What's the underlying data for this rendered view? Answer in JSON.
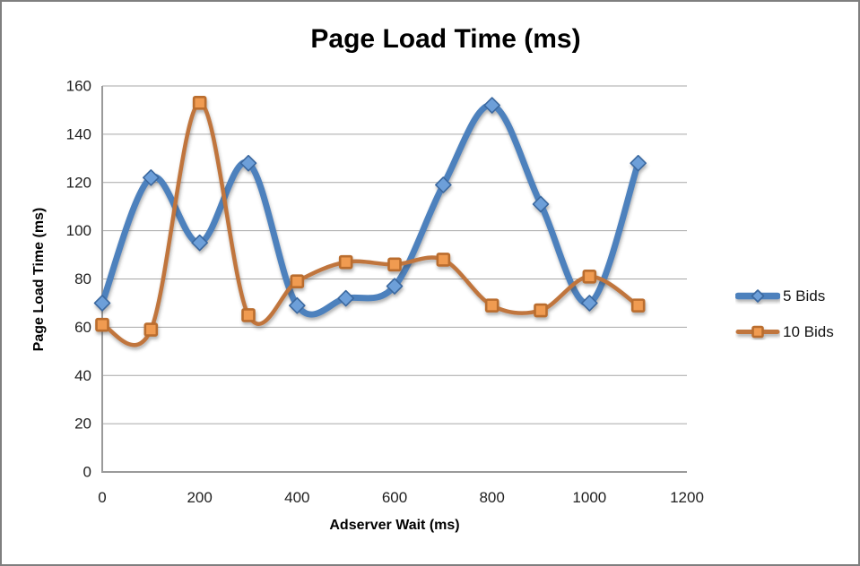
{
  "chart": {
    "title": "Page Load Time (ms)",
    "x_axis_title": "Adserver Wait (ms)",
    "y_axis_title": "Page Load Time (ms)",
    "legend_entries": [
      "5 Bids",
      "10 Bids"
    ]
  },
  "chart_data": {
    "type": "line",
    "smooth": true,
    "title": "Page Load Time (ms)",
    "xlabel": "Adserver Wait (ms)",
    "ylabel": "Page Load Time (ms)",
    "x": [
      0,
      100,
      200,
      300,
      400,
      500,
      600,
      700,
      800,
      900,
      1000,
      1100
    ],
    "series": [
      {
        "name": "5 Bids",
        "marker": "diamond",
        "line_color": "#4E81BD",
        "marker_fill": "#6D9FD9",
        "marker_stroke": "#3A689F",
        "values": [
          70,
          122,
          95,
          128,
          69,
          72,
          77,
          119,
          152,
          111,
          70,
          128
        ]
      },
      {
        "name": "10 Bids",
        "marker": "square",
        "line_color": "#C0753C",
        "marker_fill": "#F09B51",
        "marker_stroke": "#BA6D2E",
        "values": [
          61,
          59,
          153,
          65,
          79,
          87,
          86,
          88,
          69,
          67,
          81,
          69
        ]
      }
    ],
    "xlim": [
      0,
      1200
    ],
    "ylim": [
      0,
      160
    ],
    "xticks": [
      0,
      200,
      400,
      600,
      800,
      1000,
      1200
    ],
    "yticks": [
      0,
      20,
      40,
      60,
      80,
      100,
      120,
      140,
      160
    ],
    "grid": "horizontal",
    "legend_position": "right",
    "colors": {
      "gridline": "#A7A7A7",
      "axis": "#9A9A9A",
      "tick_text": "#1F1F1F",
      "background": "#FFFFFF",
      "frame": "#7F7F7F"
    }
  }
}
